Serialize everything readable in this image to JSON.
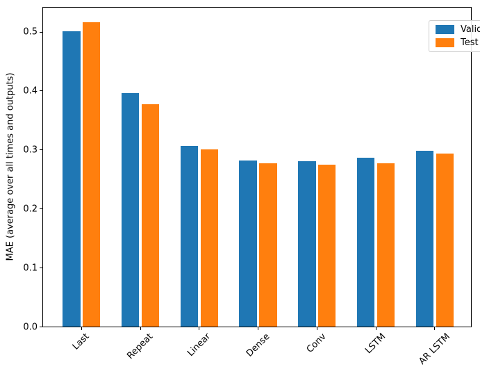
{
  "chart_data": {
    "type": "bar",
    "title": "",
    "categories": [
      "Last",
      "Repeat",
      "Linear",
      "Dense",
      "Conv",
      "LSTM",
      "AR LSTM"
    ],
    "series": [
      {
        "name": "Validation",
        "color": "#1f77b4",
        "values": [
          0.501,
          0.396,
          0.306,
          0.281,
          0.28,
          0.286,
          0.298
        ]
      },
      {
        "name": "Test",
        "color": "#ff7f0e",
        "values": [
          0.516,
          0.377,
          0.3,
          0.277,
          0.274,
          0.277,
          0.293
        ]
      }
    ],
    "xlabel": "",
    "ylabel": "MAE (average over all times and outputs)",
    "ytick_labels": [
      "0.0",
      "0.1",
      "0.2",
      "0.3",
      "0.4",
      "0.5"
    ],
    "ylim": [
      0,
      0.5406
    ],
    "grid": false,
    "legend_position": "upper right",
    "x_tick_rotation": 45,
    "bar_width_frac": 0.3,
    "bar_offset_frac": 0.17
  }
}
